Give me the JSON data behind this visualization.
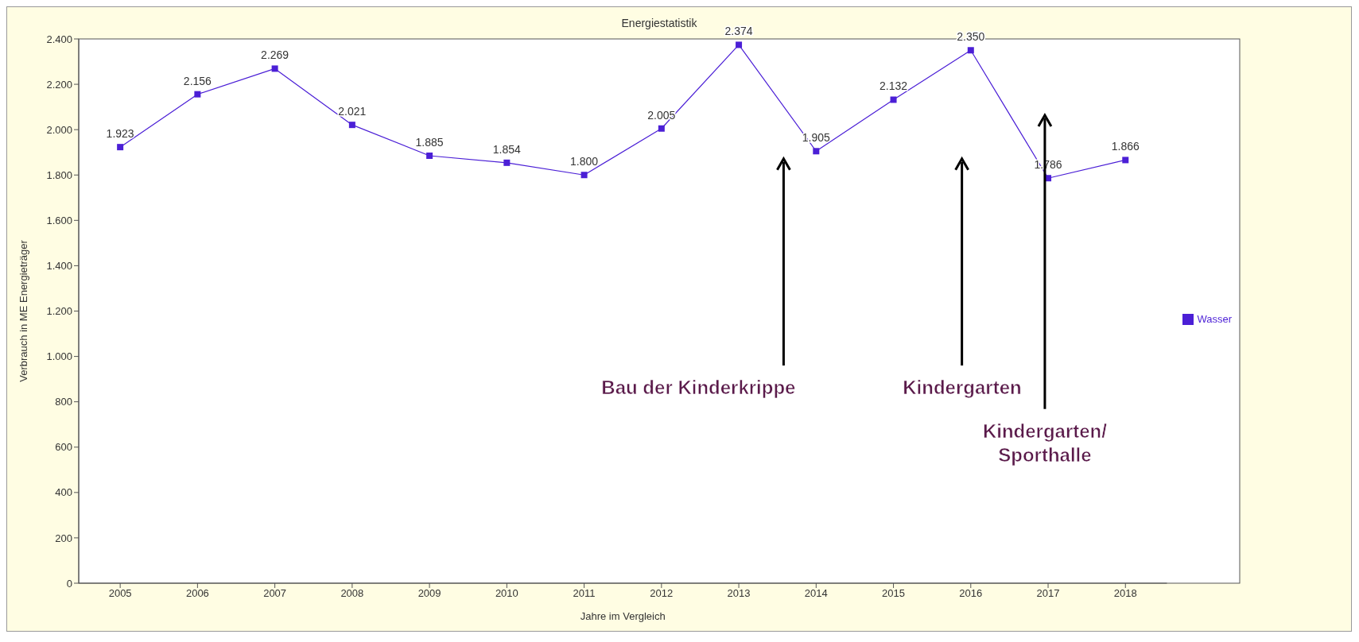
{
  "chart_data": {
    "type": "line",
    "title": "Energiestatistik",
    "xlabel": "Jahre im Vergleich",
    "ylabel": "Verbrauch in ME Energieträger",
    "categories": [
      "2005",
      "2006",
      "2007",
      "2008",
      "2009",
      "2010",
      "2011",
      "2012",
      "2013",
      "2014",
      "2015",
      "2016",
      "2017",
      "2018"
    ],
    "series": [
      {
        "name": "Wasser",
        "color": "#4b1fd6",
        "values": [
          1923,
          2156,
          2269,
          2021,
          1885,
          1854,
          1800,
          2005,
          2374,
          1905,
          2132,
          2350,
          1786,
          1866
        ],
        "value_labels": [
          "1.923",
          "2.156",
          "2.269",
          "2.021",
          "1.885",
          "1.854",
          "1.800",
          "2.005",
          "2.374",
          "1.905",
          "2.132",
          "2.350",
          "1.786",
          "1.866"
        ]
      }
    ],
    "ylim": [
      0,
      2400
    ],
    "yticks": [
      0,
      200,
      400,
      600,
      800,
      {
        "value": 1000,
        "label": "1.000"
      },
      {
        "value": 1200,
        "label": "1.200"
      },
      {
        "value": 1400,
        "label": "1.400"
      },
      {
        "value": 1600,
        "label": "1.600"
      },
      {
        "value": 1800,
        "label": "1.800"
      },
      {
        "value": 2000,
        "label": "2.000"
      },
      {
        "value": 2200,
        "label": "2.200"
      },
      {
        "value": 2400,
        "label": "2.400"
      }
    ],
    "annotations": [
      "Bau der Kinderkrippe",
      "Kindergarten",
      "Kindergarten/ Sporthalle"
    ],
    "marker": "square",
    "line_style": "solid",
    "grid": false,
    "legend": "right"
  }
}
